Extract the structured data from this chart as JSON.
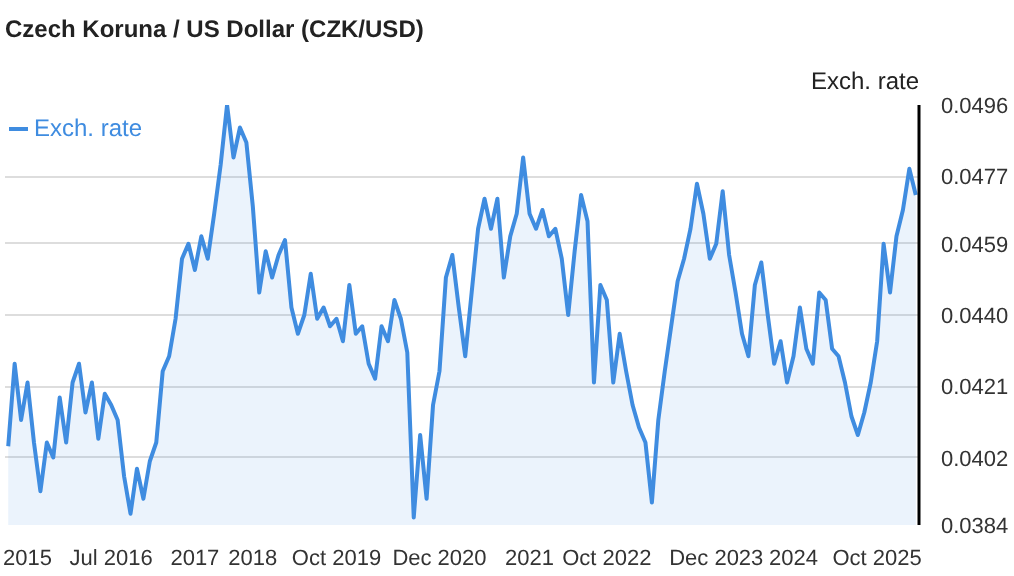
{
  "chart_data": {
    "type": "area",
    "title": "Czech Koruna / US Dollar (CZK/USD)",
    "ylabel": "Exch. rate",
    "categories": [
      null,
      null,
      null,
      "2015",
      null,
      null,
      null,
      null,
      null,
      null,
      null,
      null,
      null,
      null,
      null,
      null,
      "Jul 2016",
      null,
      null,
      null,
      null,
      null,
      null,
      null,
      null,
      null,
      null,
      null,
      null,
      "2017",
      null,
      null,
      null,
      null,
      null,
      null,
      null,
      null,
      "2018",
      null,
      null,
      null,
      null,
      null,
      null,
      null,
      null,
      null,
      null,
      null,
      null,
      "Oct 2019",
      null,
      null,
      null,
      null,
      null,
      null,
      null,
      null,
      null,
      null,
      null,
      null,
      null,
      null,
      null,
      "Dec 2020",
      null,
      null,
      null,
      null,
      null,
      null,
      null,
      null,
      null,
      null,
      null,
      null,
      null,
      "2021",
      null,
      null,
      null,
      null,
      null,
      null,
      null,
      null,
      null,
      null,
      null,
      "Oct 2022",
      null,
      null,
      null,
      null,
      null,
      null,
      null,
      null,
      null,
      null,
      null,
      null,
      null,
      null,
      null,
      null,
      "Dec 2023",
      null,
      null,
      null,
      null,
      null,
      null,
      null,
      null,
      null,
      null,
      null,
      "2024",
      null,
      null,
      null,
      null,
      null,
      null,
      null,
      null,
      null,
      null,
      null,
      null,
      "Oct 2025",
      null,
      null,
      null,
      null,
      null,
      null
    ],
    "ylim": [
      0.0384,
      0.0496
    ],
    "yticks": [
      0.0384,
      0.0402,
      0.0421,
      {
        "value": 0.044,
        "label": "0.0440"
      },
      0.0459,
      0.0477,
      0.0496
    ],
    "grid": "y",
    "legend": "top left",
    "series": [
      {
        "name": "Exch. rate",
        "color": "#3f8ce0",
        "values": [
          0.0405,
          0.0427,
          0.0412,
          0.0422,
          0.0406,
          0.0393,
          0.0406,
          0.0402,
          0.0418,
          0.0406,
          0.0422,
          0.0427,
          0.0414,
          0.0422,
          0.0407,
          0.0419,
          0.0416,
          0.0412,
          0.0397,
          0.0387,
          0.0399,
          0.0391,
          0.0401,
          0.0406,
          0.0425,
          0.0429,
          0.0439,
          0.0455,
          0.0459,
          0.0452,
          0.0461,
          0.0455,
          0.0467,
          0.048,
          0.0496,
          0.0482,
          0.049,
          0.0486,
          0.0469,
          0.0446,
          0.0457,
          0.045,
          0.0456,
          0.046,
          0.0442,
          0.0435,
          0.044,
          0.0451,
          0.0439,
          0.0442,
          0.0437,
          0.0439,
          0.0433,
          0.0448,
          0.0435,
          0.0437,
          0.0427,
          0.0423,
          0.0437,
          0.0433,
          0.0444,
          0.0439,
          0.043,
          0.0386,
          0.0408,
          0.0391,
          0.0416,
          0.0425,
          0.045,
          0.0456,
          0.0442,
          0.0429,
          0.0446,
          0.0463,
          0.0471,
          0.0463,
          0.0471,
          0.045,
          0.0461,
          0.0467,
          0.0482,
          0.0467,
          0.0463,
          0.0468,
          0.0461,
          0.0463,
          0.0455,
          0.044,
          0.0457,
          0.0472,
          0.0465,
          0.0422,
          0.0448,
          0.0444,
          0.0422,
          0.0435,
          0.0425,
          0.0416,
          0.041,
          0.0406,
          0.039,
          0.0412,
          0.0425,
          0.0437,
          0.0449,
          0.0455,
          0.0463,
          0.0475,
          0.0467,
          0.0455,
          0.0459,
          0.0473,
          0.0456,
          0.0446,
          0.0435,
          0.0429,
          0.0448,
          0.0454,
          0.044,
          0.0427,
          0.0433,
          0.0422,
          0.0429,
          0.0442,
          0.0431,
          0.0427,
          0.0446,
          0.0444,
          0.0431,
          0.0429,
          0.0422,
          0.0413,
          0.0408,
          0.0414,
          0.0422,
          0.0433,
          0.0459,
          0.0446,
          0.0461,
          0.0468,
          0.0479,
          0.0472
        ]
      }
    ]
  }
}
